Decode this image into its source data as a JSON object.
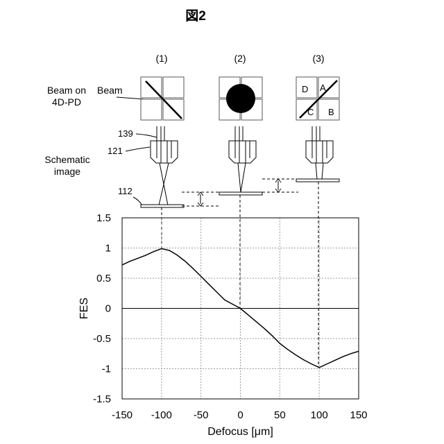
{
  "figure_title": "図2",
  "columns": [
    "(1)",
    "(2)",
    "(3)"
  ],
  "labels": {
    "beam_on_line1": "Beam on",
    "beam_on_line2": "4D-PD",
    "beam": "Beam",
    "schematic_line1": "Schematic",
    "schematic_line2": "image",
    "ref_139": "139",
    "ref_121": "121",
    "ref_112": "112"
  },
  "quadrant_letters": {
    "D": "D",
    "A": "A",
    "C": "C",
    "B": "B"
  },
  "chart_data": {
    "type": "line",
    "xlabel": "Defocus [μm]",
    "ylabel": "FES",
    "xlim": [
      -150,
      150
    ],
    "ylim": [
      -1.5,
      1.5
    ],
    "x_ticks": [
      "-150",
      "-100",
      "-50",
      "0",
      "50",
      "100",
      "150"
    ],
    "y_ticks": [
      "1.5",
      "1",
      "0.5",
      "0",
      "-0.5",
      "-1",
      "-1.5"
    ],
    "grid": true,
    "series": [
      {
        "x": [
          -150,
          -140,
          -130,
          -120,
          -110,
          -100,
          -90,
          -80,
          -70,
          -60,
          -50,
          -40,
          -30,
          -20,
          -10,
          0,
          10,
          20,
          30,
          40,
          50,
          60,
          70,
          80,
          90,
          100,
          110,
          120,
          130,
          140,
          150
        ],
        "y": [
          0.72,
          0.78,
          0.83,
          0.88,
          0.94,
          0.99,
          0.96,
          0.88,
          0.78,
          0.66,
          0.53,
          0.4,
          0.27,
          0.14,
          0.07,
          0.0,
          -0.11,
          -0.22,
          -0.33,
          -0.45,
          -0.58,
          -0.68,
          -0.77,
          -0.85,
          -0.92,
          -0.98,
          -0.92,
          -0.86,
          -0.8,
          -0.75,
          -0.71
        ]
      }
    ]
  }
}
